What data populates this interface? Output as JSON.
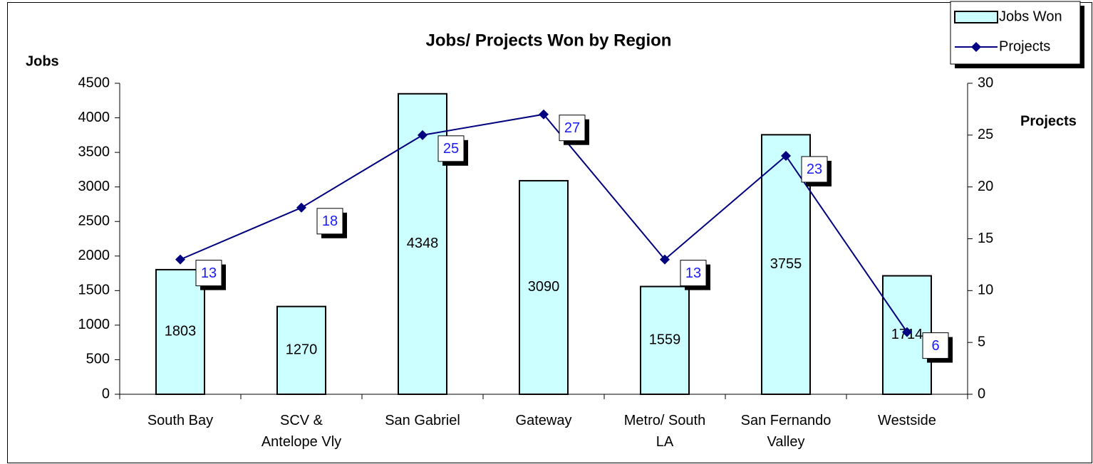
{
  "chart_data": {
    "type": "bar-line",
    "title": "Jobs/ Projects Won by Region",
    "y_label": "Jobs",
    "y2_label": "Projects",
    "categories": [
      "South Bay",
      "SCV & Antelope Vly",
      "San Gabriel",
      "Gateway",
      "Metro/ South LA",
      "San Fernando Valley",
      "Westside"
    ],
    "series": [
      {
        "name": "Jobs Won",
        "type": "bar",
        "color": "#ccffff",
        "values": [
          1803,
          1270,
          4348,
          3090,
          1559,
          3755,
          1714
        ]
      },
      {
        "name": "Projects",
        "type": "line",
        "axis": "y2",
        "color": "#000080",
        "values": [
          13,
          18,
          25,
          27,
          13,
          23,
          6
        ]
      }
    ],
    "ylim": [
      0,
      4500
    ],
    "yticks": [
      0,
      500,
      1000,
      1500,
      2000,
      2500,
      3000,
      3500,
      4000,
      4500
    ],
    "y2lim": [
      0,
      30
    ],
    "y2ticks": [
      0,
      5,
      10,
      15,
      20,
      25,
      30
    ],
    "legend": "top-right",
    "grid": false
  }
}
